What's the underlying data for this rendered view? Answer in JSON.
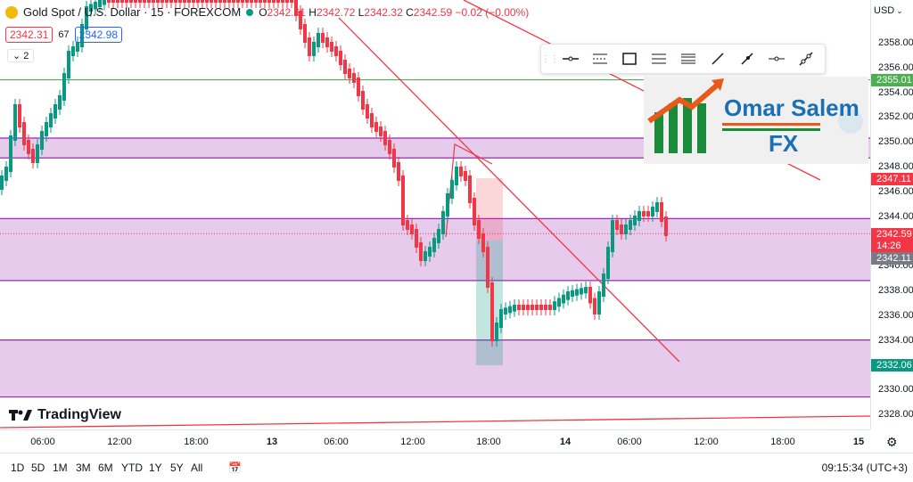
{
  "header": {
    "symbol": "Gold Spot / U.S. Dollar · 15 · FOREXCOM",
    "open_label": "O",
    "open": "2342.61",
    "high_label": "H",
    "high": "2342.72",
    "low_label": "L",
    "low": "2342.32",
    "close_label": "C",
    "close": "2342.59",
    "change": "−0.02 (−0.00%)"
  },
  "bid_ask": {
    "bid": "2342.31",
    "spread": "67",
    "ask": "2342.98"
  },
  "indicators_toggle": "2",
  "currency": "USD",
  "price_axis": {
    "ticks": [
      "2358.00",
      "2356.00",
      "2354.00",
      "2352.00",
      "2350.00",
      "2348.00",
      "2346.00",
      "2344.00",
      "2340.00",
      "2338.00",
      "2336.00",
      "2334.00",
      "2330.00",
      "2328.00"
    ],
    "labels": {
      "green_line": "2355.01",
      "red_level": "2347.11",
      "last_price": "2342.59",
      "countdown": "14:26",
      "gray_level": "2342.11",
      "green_level": "2332.06"
    }
  },
  "time_axis": [
    "06:00",
    "12:00",
    "18:00",
    "13",
    "06:00",
    "12:00",
    "18:00",
    "14",
    "06:00",
    "12:00",
    "18:00",
    "15"
  ],
  "ranges": [
    "1D",
    "5D",
    "1M",
    "3M",
    "6M",
    "YTD",
    "1Y",
    "5Y",
    "All"
  ],
  "clock": "09:15:34 (UTC+3)",
  "brand": "TradingView",
  "logo": {
    "line1": "Omar Salem",
    "line2": "FX"
  },
  "toolbar_tools": [
    "horizontal-line-icon",
    "parallel-channel-icon",
    "rectangle-icon",
    "fib-retracement-icon",
    "pitchfork-icon",
    "trendline-icon",
    "ray-icon",
    "horizontal-ray-icon",
    "extended-line-icon"
  ],
  "colors": {
    "up": "#089981",
    "down": "#f23645",
    "zone": "#e1bee7",
    "zone_border": "#9c27b0",
    "accent": "#2962ff"
  },
  "chart_data": {
    "type": "candlestick",
    "y_range": [
      2328,
      2359
    ],
    "zones": [
      [
        2348.7,
        2350.3
      ],
      [
        2338.8,
        2343.8
      ],
      [
        2329.4,
        2334.0
      ]
    ],
    "levels": {
      "green": 2355.01,
      "last": 2342.59
    }
  }
}
